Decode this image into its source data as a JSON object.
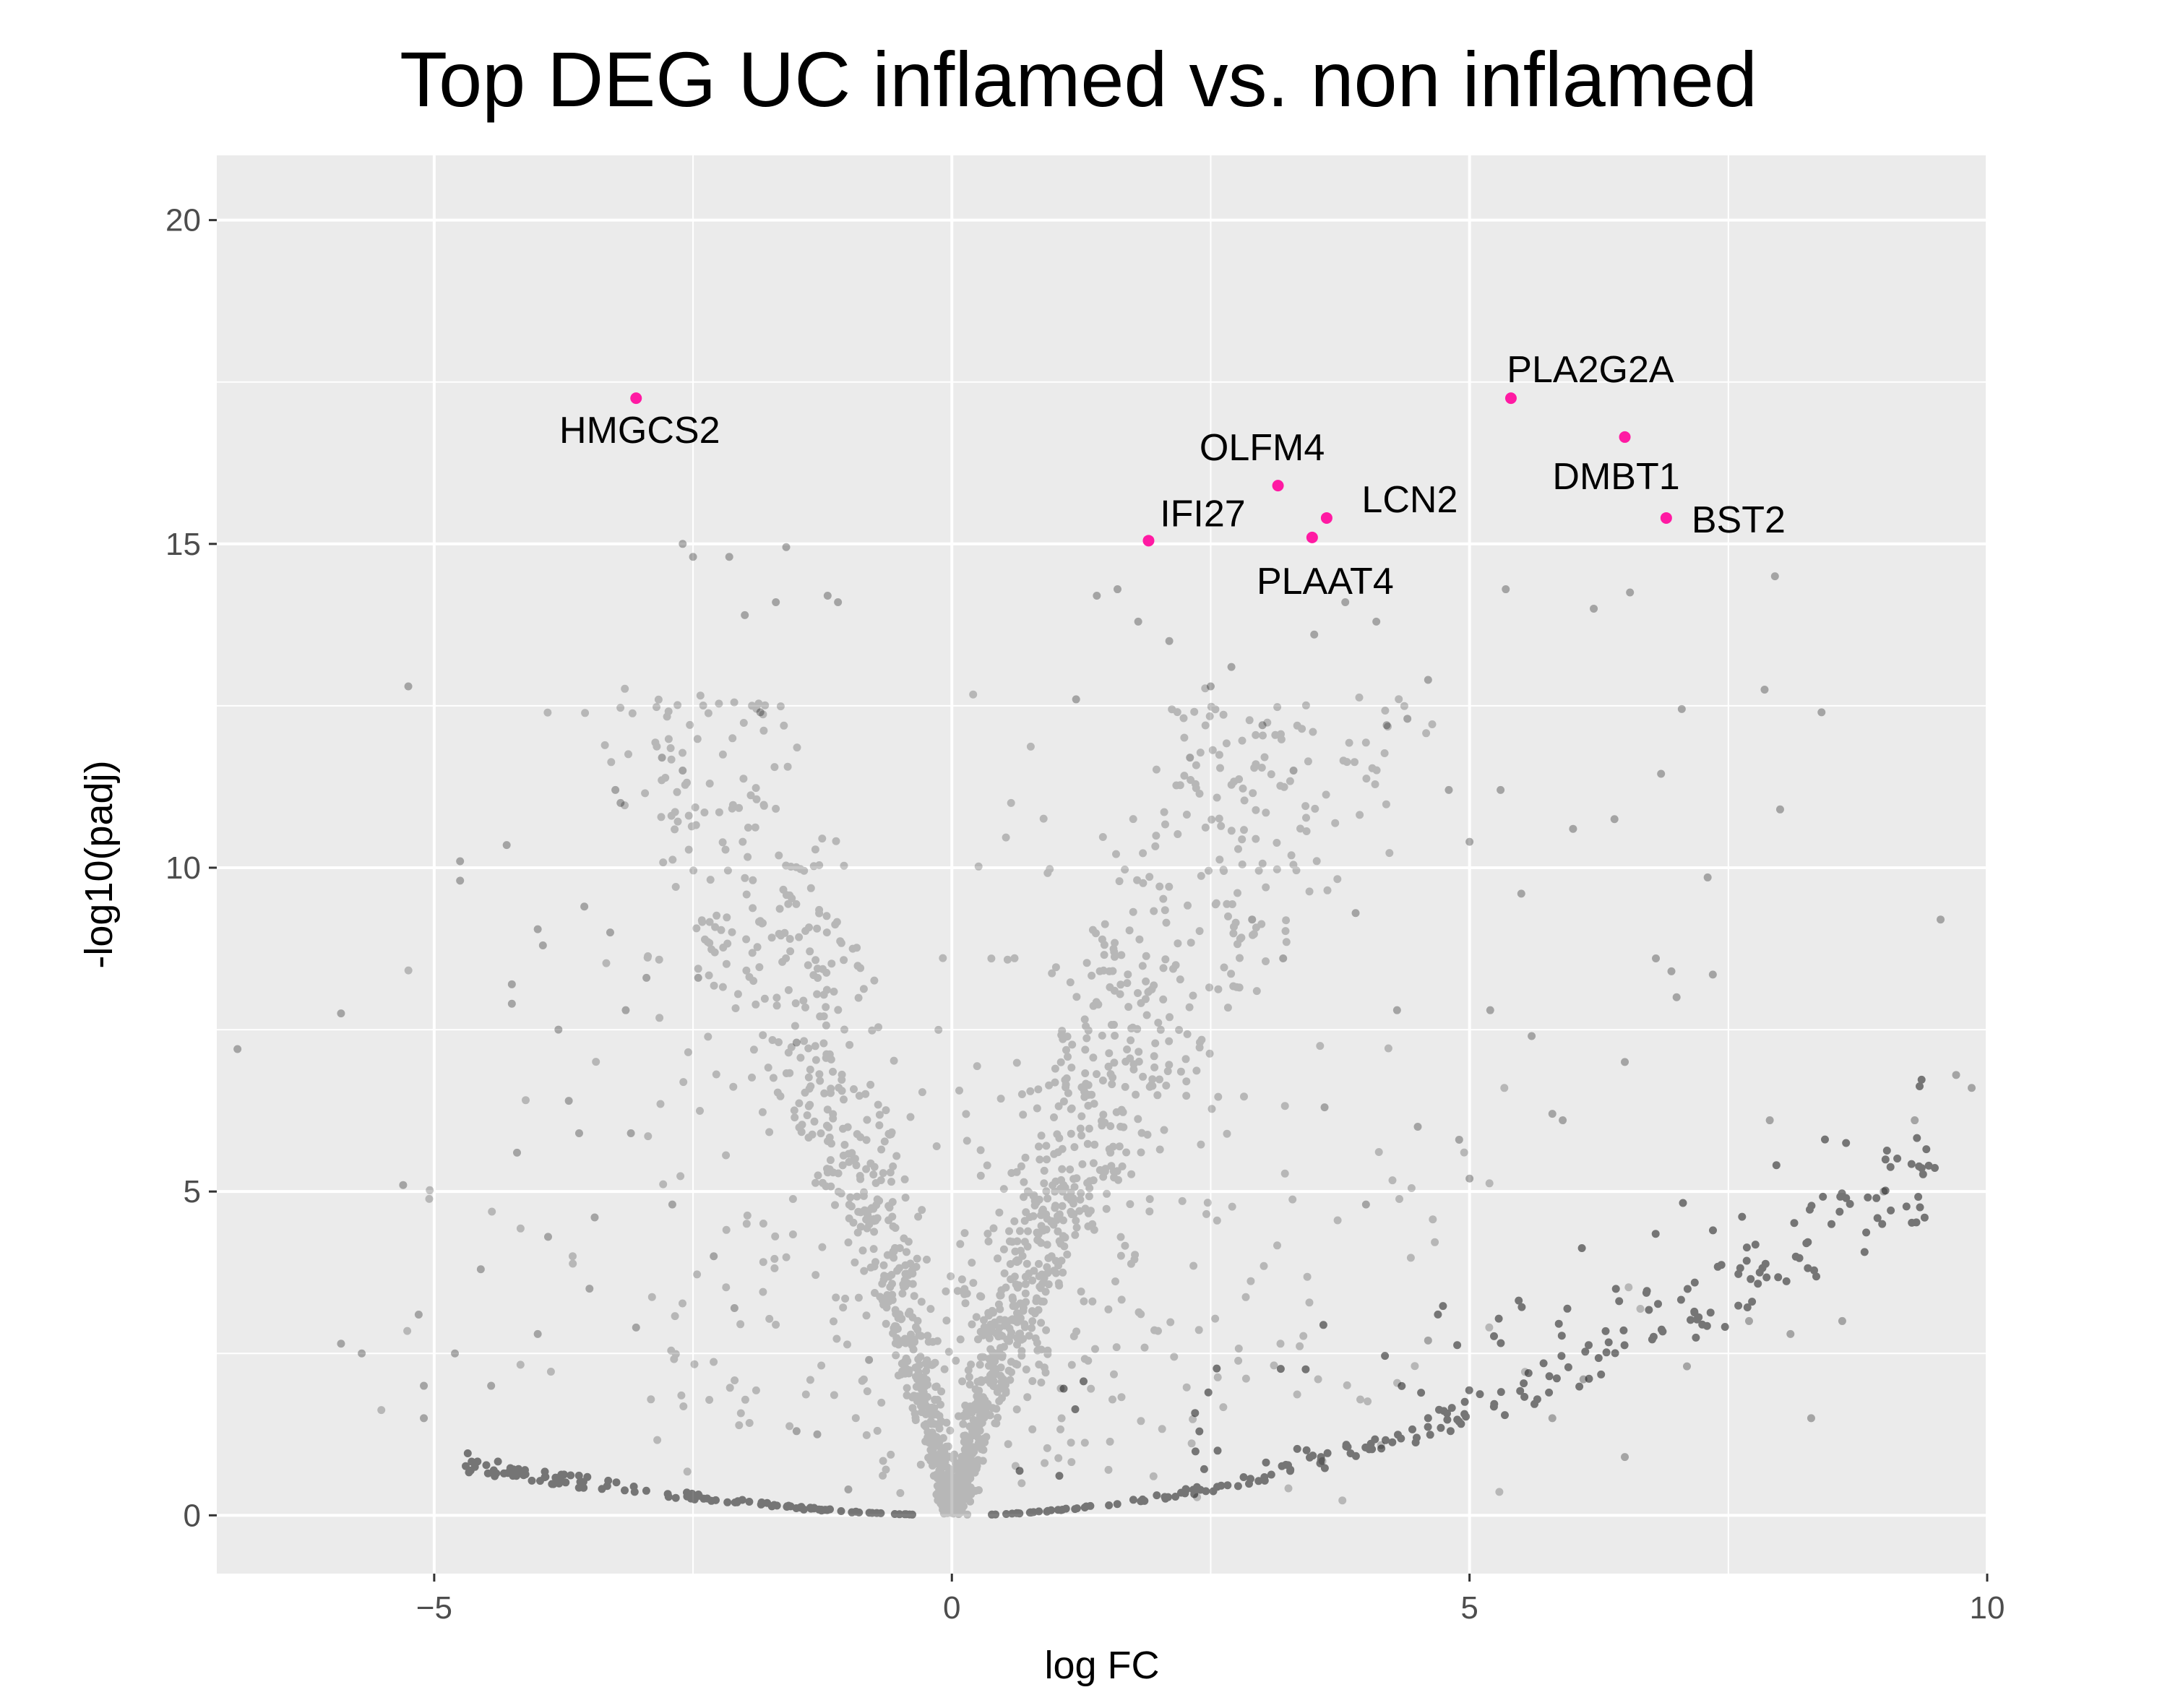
{
  "chart_data": {
    "type": "scatter",
    "title": "Top DEG UC inflamed vs. non inflamed",
    "xlabel": "log FC",
    "ylabel": "-log10(padj)",
    "xlim": [
      -7.1,
      10.0
    ],
    "ylim": [
      -0.9,
      21.0
    ],
    "xticks": [
      -5,
      0,
      5,
      10
    ],
    "xtick_labels": [
      "−5",
      "0",
      "5",
      "10"
    ],
    "yticks": [
      0,
      5,
      10,
      15,
      20
    ],
    "ytick_labels": [
      "0",
      "5",
      "10",
      "15",
      "20"
    ],
    "grid": true,
    "legend": "none",
    "colors": {
      "background": "#ebebeb",
      "grid_major": "#ffffff",
      "points": "#000000",
      "highlight": "#ff1aa3"
    },
    "highlighted_genes": [
      {
        "gene": "HMGCS2",
        "x": -3.05,
        "y": 17.25
      },
      {
        "gene": "PLA2G2A",
        "x": 5.4,
        "y": 17.25
      },
      {
        "gene": "DMBT1",
        "x": 6.5,
        "y": 16.65
      },
      {
        "gene": "OLFM4",
        "x": 3.15,
        "y": 15.9
      },
      {
        "gene": "LCN2",
        "x": 3.62,
        "y": 15.4
      },
      {
        "gene": "BST2",
        "x": 6.9,
        "y": 15.4
      },
      {
        "gene": "PLAAT4",
        "x": 3.48,
        "y": 15.1
      },
      {
        "gene": "IFI27",
        "x": 1.9,
        "y": 15.05
      }
    ],
    "background_points": [
      [
        -6.9,
        7.2
      ],
      [
        -5.9,
        7.75
      ],
      [
        -5.9,
        2.65
      ],
      [
        -5.7,
        2.5
      ],
      [
        -5.25,
        12.8
      ],
      [
        -5.3,
        5.1
      ],
      [
        -5.15,
        3.1
      ],
      [
        -5.1,
        2.0
      ],
      [
        -5.1,
        1.5
      ],
      [
        -4.8,
        2.5
      ],
      [
        -4.75,
        10.1
      ],
      [
        -4.75,
        9.8
      ],
      [
        -4.55,
        3.8
      ],
      [
        -4.45,
        2.0
      ],
      [
        -4.3,
        10.35
      ],
      [
        -4.25,
        8.2
      ],
      [
        -4.25,
        7.9
      ],
      [
        -4.2,
        5.6
      ],
      [
        -4.0,
        9.05
      ],
      [
        -3.95,
        8.8
      ],
      [
        -4.0,
        2.8
      ],
      [
        -3.9,
        4.3
      ],
      [
        -3.8,
        7.5
      ],
      [
        -3.7,
        6.4
      ],
      [
        -3.6,
        5.9
      ],
      [
        -3.55,
        9.4
      ],
      [
        -3.5,
        3.5
      ],
      [
        -3.45,
        4.6
      ],
      [
        -3.3,
        9.0
      ],
      [
        -3.25,
        11.2
      ],
      [
        -3.2,
        11.0
      ],
      [
        -3.15,
        7.8
      ],
      [
        -3.1,
        5.9
      ],
      [
        -3.05,
        2.9
      ],
      [
        -2.95,
        8.3
      ],
      [
        -2.8,
        11.7
      ],
      [
        -2.7,
        4.8
      ],
      [
        -2.6,
        15.0
      ],
      [
        -2.6,
        11.5
      ],
      [
        -2.5,
        14.8
      ],
      [
        -2.45,
        8.3
      ],
      [
        -2.3,
        4.0
      ],
      [
        -2.15,
        14.8
      ],
      [
        -2.1,
        3.2
      ],
      [
        -2.0,
        13.9
      ],
      [
        -1.85,
        12.4
      ],
      [
        -1.7,
        14.1
      ],
      [
        -1.6,
        14.95
      ],
      [
        -1.5,
        7.3
      ],
      [
        -1.2,
        14.2
      ],
      [
        -1.1,
        14.1
      ],
      [
        -1.5,
        1.3
      ],
      [
        -1.3,
        1.25
      ],
      [
        -1.0,
        0.4
      ],
      [
        -0.8,
        2.4
      ],
      [
        1.2,
        12.6
      ],
      [
        1.4,
        14.2
      ],
      [
        1.6,
        14.3
      ],
      [
        1.8,
        13.8
      ],
      [
        2.1,
        13.5
      ],
      [
        2.3,
        11.7
      ],
      [
        2.5,
        12.8
      ],
      [
        2.7,
        13.1
      ],
      [
        3.0,
        12.2
      ],
      [
        3.3,
        11.5
      ],
      [
        3.5,
        13.6
      ],
      [
        3.8,
        14.1
      ],
      [
        4.1,
        13.8
      ],
      [
        4.2,
        12.2
      ],
      [
        4.4,
        12.3
      ],
      [
        4.6,
        12.9
      ],
      [
        4.8,
        11.2
      ],
      [
        5.0,
        10.4
      ],
      [
        5.2,
        7.8
      ],
      [
        5.3,
        11.2
      ],
      [
        5.35,
        14.3
      ],
      [
        5.5,
        9.6
      ],
      [
        5.6,
        7.4
      ],
      [
        5.8,
        6.2
      ],
      [
        5.9,
        6.1
      ],
      [
        6.0,
        10.6
      ],
      [
        6.2,
        14.0
      ],
      [
        6.4,
        10.75
      ],
      [
        6.5,
        7.0
      ],
      [
        6.55,
        14.25
      ],
      [
        6.8,
        8.6
      ],
      [
        6.85,
        11.45
      ],
      [
        6.95,
        8.4
      ],
      [
        7.0,
        8.0
      ],
      [
        7.05,
        12.45
      ],
      [
        7.3,
        9.85
      ],
      [
        7.35,
        8.35
      ],
      [
        7.7,
        3.0
      ],
      [
        7.85,
        12.75
      ],
      [
        7.9,
        6.1
      ],
      [
        7.95,
        14.5
      ],
      [
        8.0,
        10.9
      ],
      [
        8.1,
        2.8
      ],
      [
        8.3,
        1.5
      ],
      [
        8.4,
        12.4
      ],
      [
        8.6,
        3.0
      ],
      [
        9.0,
        5.0
      ],
      [
        9.3,
        6.1
      ],
      [
        9.55,
        9.2
      ],
      [
        9.85,
        6.6
      ],
      [
        9.7,
        6.8
      ],
      [
        4.3,
        7.8
      ],
      [
        3.9,
        9.3
      ],
      [
        4.5,
        6.0
      ],
      [
        4.9,
        5.8
      ],
      [
        5.0,
        5.2
      ],
      [
        4.0,
        4.8
      ],
      [
        3.6,
        6.3
      ],
      [
        2.9,
        9.2
      ],
      [
        3.2,
        8.6
      ],
      [
        4.6,
        2.7
      ],
      [
        5.8,
        1.5
      ],
      [
        6.1,
        2.1
      ],
      [
        6.5,
        0.9
      ],
      [
        7.1,
        2.3
      ]
    ]
  }
}
